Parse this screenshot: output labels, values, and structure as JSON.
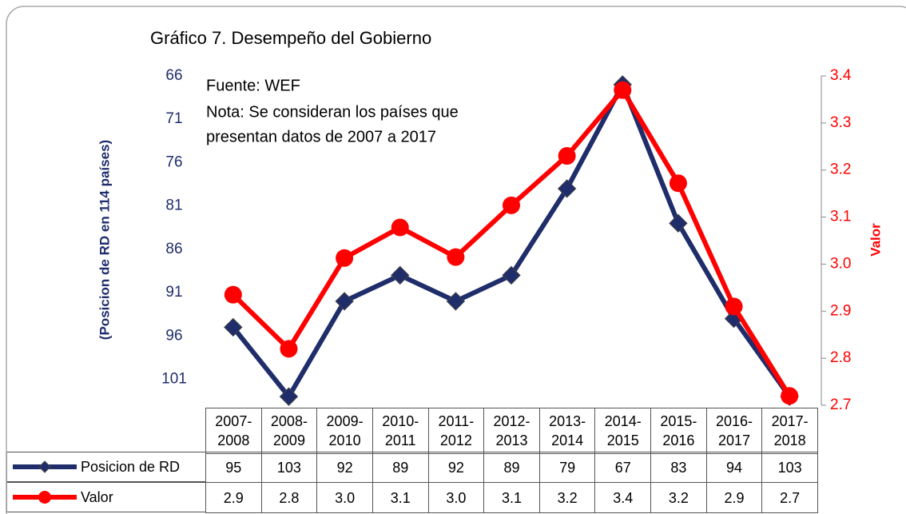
{
  "chart_data": {
    "type": "line",
    "title": "Gráfico  7. Desempeño del Gobierno",
    "annotations": [
      "Fuente: WEF",
      "Nota: Se consideran los países que",
      "presentan datos de 2007 a 2017"
    ],
    "y_label": "(Posicion de RD en 114 países)",
    "y2_label": "Valor",
    "categories": [
      "2007-2008",
      "2008-2009",
      "2009-2010",
      "2010-2011",
      "2011-2012",
      "2012-2013",
      "2013-2014",
      "2014-2015",
      "2015-2016",
      "2016-2017",
      "2017-2018"
    ],
    "series": [
      {
        "name": "Posicion de RD",
        "color": "#1f2d6b",
        "marker": "diamond",
        "values": [
          95,
          103,
          92,
          89,
          92,
          89,
          79,
          67,
          83,
          94,
          103
        ]
      },
      {
        "name": "Valor",
        "color": "#ff0000",
        "marker": "circle",
        "axis": "y2",
        "values": [
          2.935,
          2.82,
          3.013,
          3.078,
          3.015,
          3.125,
          3.23,
          3.37,
          3.172,
          2.91,
          2.72
        ],
        "value_labels": [
          "2.9",
          "2.8",
          "3.0",
          "3.1",
          "3.0",
          "3.1",
          "3.2",
          "3.4",
          "3.2",
          "2.9",
          "2.7"
        ]
      }
    ],
    "ylim": [
      104,
      66
    ],
    "yticks": [
      66,
      71,
      76,
      81,
      86,
      91,
      96,
      101
    ],
    "y2lim": [
      2.7,
      3.4
    ],
    "y2ticks": [
      2.7,
      2.8,
      2.9,
      {
        "value": 3.0,
        "label": "3.0"
      },
      3.1,
      3.2,
      3.3,
      3.4
    ]
  }
}
